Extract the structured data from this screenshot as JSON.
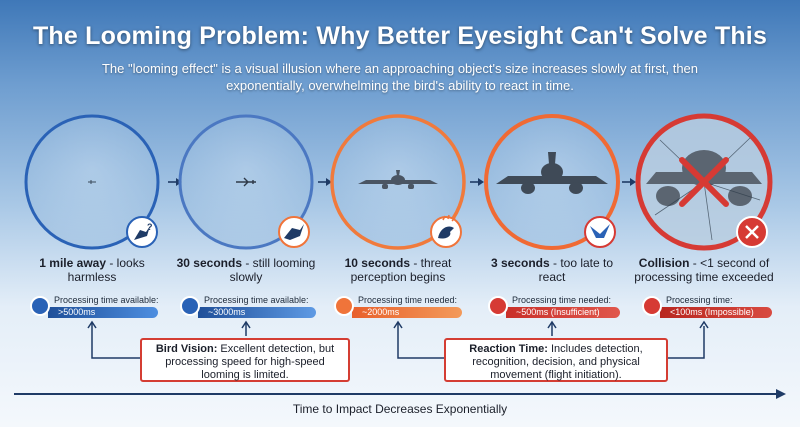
{
  "header": {
    "title": "The Looming Problem: Why Better Eyesight Can't Solve This",
    "subtitle": "The \"looming effect\" is a visual illusion where an approaching object's size increases slowly at first, then exponentially, overwhelming the bird's ability to react in time."
  },
  "stages": [
    {
      "label_bold": "1 mile away",
      "label_rest": " - looks harmless",
      "processing_label": "Processing time available:",
      "processing_value": ">5000ms",
      "icon": "bird-question-icon",
      "ring_color": "#2a62b6"
    },
    {
      "label_bold": "30 seconds",
      "label_rest": " - still looming slowly",
      "processing_label": "Processing time available:",
      "processing_value": "~3000ms",
      "icon": "bird-icon",
      "ring_color": "#4b78c2"
    },
    {
      "label_bold": "10 seconds",
      "label_rest": " - threat perception begins",
      "processing_label": "Processing time needed:",
      "processing_value": "~2000ms",
      "icon": "alert-bird-icon",
      "ring_color": "#f07a3c"
    },
    {
      "label_bold": "3 seconds",
      "label_rest": " - too late to react",
      "processing_label": "Processing time needed:",
      "processing_value": "~500ms (Insufficient)",
      "icon": "flapping-bird-icon",
      "ring_color": "#f06a34"
    },
    {
      "label_bold": "Collision",
      "label_rest": " - <1 second of processing time exceeded",
      "processing_label": "Processing time:",
      "processing_value": "<100ms (Impossible)",
      "icon": "close-x-icon",
      "ring_color": "#d63a34"
    }
  ],
  "callouts": {
    "vision_bold": "Bird Vision:",
    "vision_rest": " Excellent detection, but processing speed for high-speed looming is limited.",
    "reaction_bold": "Reaction Time:",
    "reaction_rest": " Includes detection, recognition, decision, and physical movement (flight initiation)."
  },
  "axis": {
    "label": "Time to Impact Decreases Exponentially"
  },
  "colors": {
    "blue": "#2a62b6",
    "orange": "#f0743a",
    "red": "#d63a34",
    "navy": "#1f3b66"
  }
}
